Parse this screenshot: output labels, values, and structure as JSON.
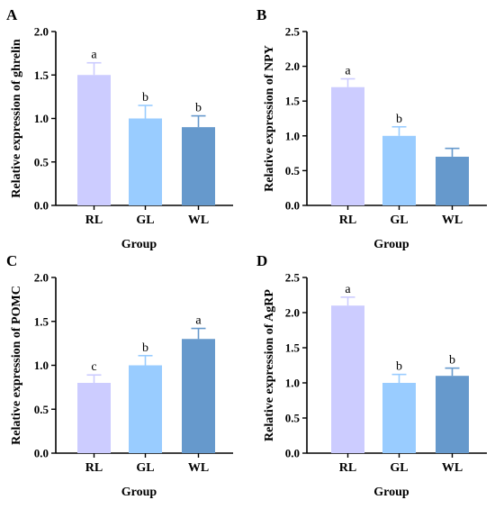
{
  "chart_data": [
    {
      "type": "bar",
      "panel": "A",
      "categories": [
        "RL",
        "GL",
        "WL"
      ],
      "values": [
        1.5,
        1.0,
        0.9
      ],
      "errors": [
        0.14,
        0.15,
        0.13
      ],
      "significance": [
        "a",
        "b",
        "b"
      ],
      "xlabel": "Group",
      "ylabel": "Relative expression of ghrelin",
      "ylim": [
        0,
        2.0
      ],
      "yticks": [
        "0.0",
        "0.5",
        "1.0",
        "1.5",
        "2.0"
      ],
      "colors": [
        "#ccccff",
        "#99ccff",
        "#6699cc"
      ]
    },
    {
      "type": "bar",
      "panel": "B",
      "categories": [
        "RL",
        "GL",
        "WL"
      ],
      "values": [
        1.7,
        1.0,
        0.7
      ],
      "errors": [
        0.12,
        0.13,
        0.12
      ],
      "significance": [
        "a",
        "b",
        ""
      ],
      "xlabel": "Group",
      "ylabel": "Relative expression of NPY",
      "ylim": [
        0,
        2.5
      ],
      "yticks": [
        "0.0",
        "0.5",
        "1.0",
        "1.5",
        "2.0",
        "2.5"
      ],
      "colors": [
        "#ccccff",
        "#99ccff",
        "#6699cc"
      ]
    },
    {
      "type": "bar",
      "panel": "C",
      "categories": [
        "RL",
        "GL",
        "WL"
      ],
      "values": [
        0.8,
        1.0,
        1.3
      ],
      "errors": [
        0.09,
        0.11,
        0.12
      ],
      "significance": [
        "c",
        "b",
        "a"
      ],
      "xlabel": "Group",
      "ylabel": "Relative expression of POMC",
      "ylim": [
        0,
        2.0
      ],
      "yticks": [
        "0.0",
        "0.5",
        "1.0",
        "1.5",
        "2.0"
      ],
      "colors": [
        "#ccccff",
        "#99ccff",
        "#6699cc"
      ]
    },
    {
      "type": "bar",
      "panel": "D",
      "categories": [
        "RL",
        "GL",
        "WL"
      ],
      "values": [
        2.1,
        1.0,
        1.1
      ],
      "errors": [
        0.12,
        0.12,
        0.11
      ],
      "significance": [
        "a",
        "b",
        "b"
      ],
      "xlabel": "Group",
      "ylabel": "Relative expression of AgRP",
      "ylim": [
        0,
        2.5
      ],
      "yticks": [
        "0.0",
        "0.5",
        "1.0",
        "1.5",
        "2.0",
        "2.5"
      ],
      "colors": [
        "#ccccff",
        "#99ccff",
        "#6699cc"
      ]
    }
  ]
}
